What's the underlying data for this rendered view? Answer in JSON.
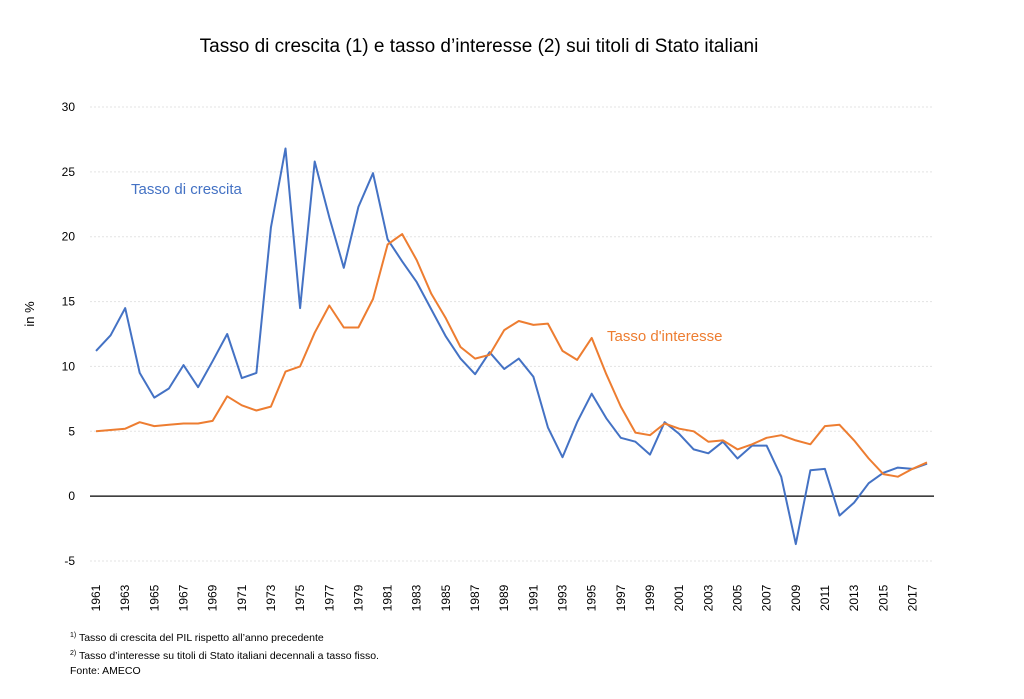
{
  "chart_data": {
    "type": "line",
    "title": "Tasso di crescita (1) e tasso d’interesse (2) sui titoli di Stato italiani",
    "ylabel": "in %",
    "xlabel": "",
    "ylim": [
      -5,
      30
    ],
    "yticks": [
      "-5",
      "0",
      "5",
      "10",
      "15",
      "20",
      "25",
      "30"
    ],
    "grid": "horizontal",
    "xticks": [
      "1961",
      "1963",
      "1965",
      "1967",
      "1969",
      "1971",
      "1973",
      "1975",
      "1977",
      "1979",
      "1981",
      "1983",
      "1985",
      "1987",
      "1989",
      "1991",
      "1993",
      "1995",
      "1997",
      "1999",
      "2001",
      "2003",
      "2005",
      "2007",
      "2009",
      "2011",
      "2013",
      "2015",
      "2017"
    ],
    "x": [
      1961,
      1962,
      1963,
      1964,
      1965,
      1966,
      1967,
      1968,
      1969,
      1970,
      1971,
      1972,
      1973,
      1974,
      1975,
      1976,
      1977,
      1978,
      1979,
      1980,
      1981,
      1982,
      1983,
      1984,
      1985,
      1986,
      1987,
      1988,
      1989,
      1990,
      1991,
      1992,
      1993,
      1994,
      1995,
      1996,
      1997,
      1998,
      1999,
      2000,
      2001,
      2002,
      2003,
      2004,
      2005,
      2006,
      2007,
      2008,
      2009,
      2010,
      2011,
      2012,
      2013,
      2014,
      2015,
      2016,
      2017,
      2018
    ],
    "series": [
      {
        "name": "Tasso di crescita",
        "label": "Tasso di crescita",
        "color": "#4472C4",
        "values": [
          11.2,
          12.4,
          14.5,
          9.5,
          7.6,
          8.3,
          10.1,
          8.4,
          10.4,
          12.5,
          9.1,
          9.5,
          20.7,
          26.8,
          14.5,
          25.8,
          21.5,
          17.6,
          22.3,
          24.9,
          19.8,
          18.1,
          16.5,
          14.4,
          12.3,
          10.6,
          9.4,
          11.1,
          9.8,
          10.6,
          9.2,
          5.3,
          3.0,
          5.7,
          7.9,
          6.0,
          4.5,
          4.2,
          3.2,
          5.7,
          4.8,
          3.6,
          3.3,
          4.2,
          2.9,
          3.9,
          3.9,
          1.5,
          -3.7,
          2.0,
          2.1,
          -1.5,
          -0.5,
          1.0,
          1.8,
          2.2,
          2.1,
          2.5
        ]
      },
      {
        "name": "Tasso d'interesse",
        "label": "Tasso d'interesse",
        "color": "#ED7D31",
        "values": [
          5.0,
          5.1,
          5.2,
          5.7,
          5.4,
          5.5,
          5.6,
          5.6,
          5.8,
          7.7,
          7.0,
          6.6,
          6.9,
          9.6,
          10.0,
          12.6,
          14.7,
          13.0,
          13.0,
          15.2,
          19.4,
          20.2,
          18.2,
          15.6,
          13.7,
          11.5,
          10.6,
          10.9,
          12.8,
          13.5,
          13.2,
          13.3,
          11.2,
          10.5,
          12.2,
          9.4,
          6.9,
          4.9,
          4.7,
          5.6,
          5.2,
          5.0,
          4.2,
          4.3,
          3.6,
          4.0,
          4.5,
          4.7,
          4.3,
          4.0,
          5.4,
          5.5,
          4.3,
          2.9,
          1.7,
          1.5,
          2.1,
          2.6
        ]
      }
    ]
  },
  "footnotes": [
    {
      "mark": "1)",
      "text": "Tasso di crescita del PIL rispetto all’anno precedente"
    },
    {
      "mark": "2)",
      "text": "Tasso d’interesse su titoli di Stato italiani decennali a tasso fisso."
    }
  ],
  "source": "Fonte: AMECO"
}
